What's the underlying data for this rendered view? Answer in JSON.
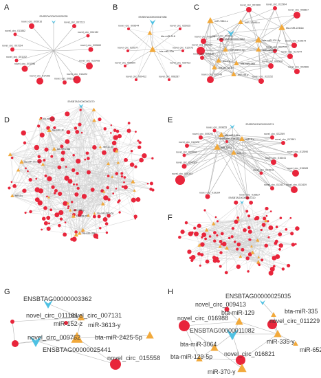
{
  "panels": {
    "A": {
      "label": "A",
      "center_gene": "ENSBTAG00000025035",
      "circ_labels": [
        "novel_circ_005016",
        "novel_circ_011862",
        "novel_circ_007213",
        "novel_circ_004132",
        "novel_circ_007254",
        "novel_circ_001596",
        "novel_circ_000860",
        "novel_circ_001102",
        "novel_circ_015708",
        "novel_circ_014222",
        "novel_circ_017303",
        "novel_circ_006112"
      ]
    },
    "B": {
      "label": "B",
      "gene": "ENSBTAG00000047086",
      "mirs": [
        "bta-miR-218",
        "bta-miR-33a"
      ],
      "circ_labels": [
        "novel_circ_009544",
        "novel_circ_025025",
        "novel_circ_020577",
        "novel_circ_012073",
        "novel_circ_008600",
        "novel_circ_025413",
        "novel_circ_009412",
        "novel_circ_008287"
      ]
    },
    "C": {
      "label": "C",
      "gene": "ENSBTAG00000011082",
      "mirs": [
        "miR-7864-z",
        "miR-12986-x",
        "bta-miR-2284w",
        "bta-miR-101-5p",
        "miR-12986-x",
        "miR-6592-3p",
        "bta-let-7a-3p",
        "bta-miR-18b",
        "miR-98-y",
        "let-7-y"
      ],
      "circ_labels": [
        "novel_circ_001996",
        "novel_circ_012904",
        "novel_circ_008827",
        "novel_circ_005874",
        "novel_circ_003001",
        "novel_circ_009625",
        "novel_circ_019579",
        "novel_circ_022719",
        "novel_circ_017244",
        "novel_circ_008538",
        "novel_circ_002566",
        "novel_circ_002249",
        "novel_circ_022252",
        "novel_circ_006536"
      ]
    },
    "D": {
      "label": "D",
      "gene": "ENSBTAG00000000270",
      "mirs": [
        "bta-miR-195a-5p",
        "miR-8-y",
        "bta-miR-19b",
        "bta-miR-196b",
        "bta-miR-214",
        "bta-miR-200a",
        "bta-miR-29a-3p",
        "miR-11-5p",
        "bta-miR-135a",
        "miR-1388-y"
      ]
    },
    "E": {
      "label": "E",
      "gene": "ENSBTAG00000015274",
      "mirs": [
        "miR-340-x",
        "miR-9-y",
        "miR-8-z",
        "bta-miR-181a"
      ],
      "circ_labels": [
        "novel_circ_009655",
        "novel_circ_022269",
        "novel_circ_009291",
        "novel_circ_018723",
        "novel_circ_017861",
        "novel_circ_014976",
        "novel_circ_012590",
        "novel_circ_012698",
        "novel_circ_016441",
        "novel_circ_024285",
        "novel_circ_015383",
        "novel_circ_017618",
        "novel_circ_005144",
        "novel_circ_013437",
        "novel_circ_013439",
        "novel_circ_019164",
        "novel_circ_016827"
      ]
    },
    "F": {
      "label": "F",
      "gene": "ENSBTAG00000017220"
    },
    "G": {
      "label": "G",
      "genes": [
        "ENSBTAG00000003362",
        "ENSBTAG00000025441"
      ],
      "mirs": [
        "miR-152-z",
        "miR-3613-y",
        "bta-miR-2425-5p"
      ],
      "circs": [
        "novel_circ_011161",
        "novel_circ_007131",
        "novel_circ_009762",
        "novel_circ_015558"
      ]
    },
    "H": {
      "label": "H",
      "genes": [
        "ENSBTAG00000025035",
        "ENSBTAG00000011082"
      ],
      "mirs": [
        "bta-miR-129",
        "bta-miR-335",
        "miR-335-y",
        "miR-6524-z",
        "bta-miR-3064",
        "bta-miR-129-5p",
        "miR-370-y"
      ],
      "circs": [
        "novel_circ_009413",
        "novel_circ_016988",
        "novel_circ_011229",
        "novel_circ_016821"
      ]
    }
  },
  "colors": {
    "circRNA": "#e8253b",
    "miRNA": "#f2a93b",
    "mRNA": "#4ec1e3",
    "edge": "#b3b3b3"
  },
  "shapes": {
    "circRNA": "circle",
    "miRNA": "triangle",
    "mRNA": "v-arrowhead"
  }
}
